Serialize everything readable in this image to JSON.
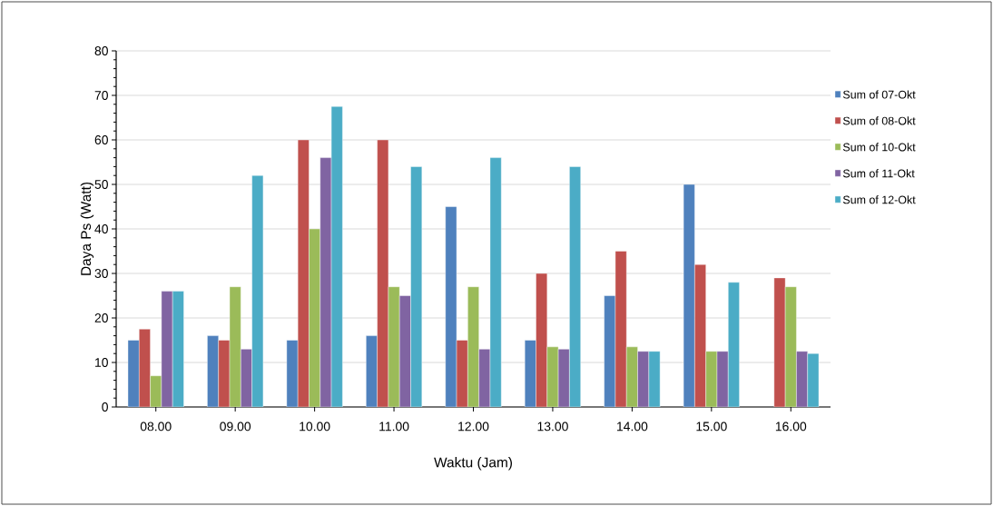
{
  "chart_data": {
    "type": "bar",
    "xlabel": "Waktu (Jam)",
    "ylabel": "Daya Ps (Watt)",
    "categories": [
      "08.00",
      "09.00",
      "10.00",
      "11.00",
      "12.00",
      "13.00",
      "14.00",
      "15.00",
      "16.00"
    ],
    "series": [
      {
        "name": "Sum of 07-Okt",
        "color": "#4f81bd",
        "values": [
          15,
          16,
          15,
          16,
          45,
          15,
          25,
          50,
          null
        ]
      },
      {
        "name": "Sum of 08-Okt",
        "color": "#c0504d",
        "values": [
          17.5,
          15,
          60,
          60,
          15,
          30,
          35,
          32,
          29
        ]
      },
      {
        "name": "Sum of 10-Okt",
        "color": "#9bbb59",
        "values": [
          7,
          27,
          40,
          27,
          27,
          13.5,
          13.5,
          12.5,
          27
        ]
      },
      {
        "name": "Sum of 11-Okt",
        "color": "#8064a2",
        "values": [
          26,
          13,
          56,
          25,
          13,
          13,
          12.5,
          12.5,
          12.5
        ]
      },
      {
        "name": "Sum of 12-Okt",
        "color": "#4bacc6",
        "values": [
          26,
          52,
          67.5,
          54,
          56,
          54,
          12.5,
          28,
          12
        ]
      }
    ],
    "ylim": [
      0,
      80
    ],
    "yticks": [
      0,
      10,
      20,
      30,
      40,
      50,
      60,
      70,
      80
    ],
    "grid": "y",
    "legend": "right"
  }
}
